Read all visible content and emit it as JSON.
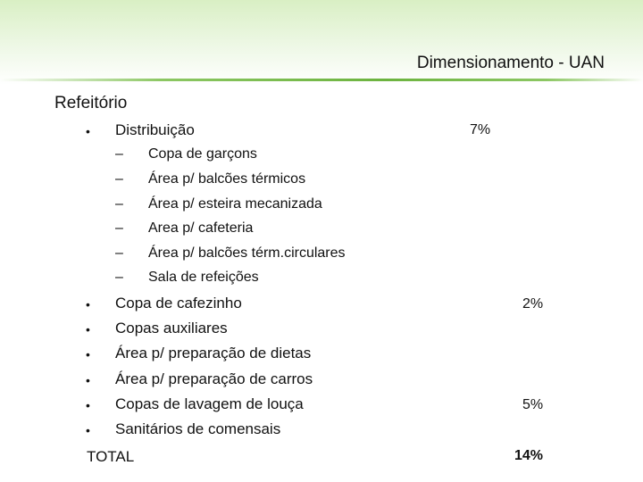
{
  "title": "Dimensionamento - UAN",
  "section": "Refeitório",
  "colors": {
    "banner": "#d9efc4",
    "accent": "#6cb33f"
  },
  "items": [
    {
      "label": "Distribuição",
      "value": "7%"
    },
    {
      "label": "Copa de cafezinho",
      "value": "2%"
    },
    {
      "label": "Copas auxiliares",
      "value": ""
    },
    {
      "label": "Área p/ preparação de dietas",
      "value": ""
    },
    {
      "label": "Área p/ preparação de carros",
      "value": ""
    },
    {
      "label": "Copas de lavagem de louça",
      "value": "5%"
    },
    {
      "label": "Sanitários de comensais",
      "value": ""
    }
  ],
  "subitems": [
    "Copa de garçons",
    "Área p/ balcões térmicos",
    "Área p/ esteira mecanizada",
    "Area p/  cafeteria",
    "Área p/ balcões térm.circulares",
    "Sala de refeições"
  ],
  "bullet_char": "•",
  "dash_char": "–",
  "total": {
    "label": "TOTAL",
    "value": "14%"
  }
}
